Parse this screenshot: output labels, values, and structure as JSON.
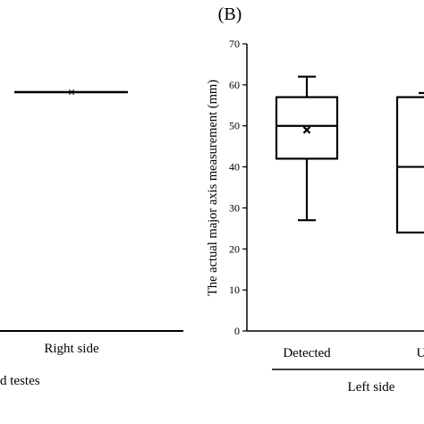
{
  "left_panel": {
    "category_label": "Right side",
    "group_label": "d testes",
    "mean_marker": "×"
  },
  "chart_data": {
    "type": "box",
    "panel_label": "(B)",
    "ylabel": "The actual major axis measurement (mm)",
    "ylim": [
      0,
      70
    ],
    "yticks": [
      0,
      10,
      20,
      30,
      40,
      50,
      60,
      70
    ],
    "group_label": "Left side",
    "grid": false,
    "categories": [
      "Detected",
      "Unc"
    ],
    "boxes": [
      {
        "category": "Detected",
        "min": 27,
        "q1": 42,
        "median": 50,
        "q3": 57,
        "max": 62,
        "mean": 49
      },
      {
        "category": "Unc",
        "min": 24,
        "q1": 24,
        "median": 40,
        "q3": 57,
        "max": 58
      }
    ]
  }
}
